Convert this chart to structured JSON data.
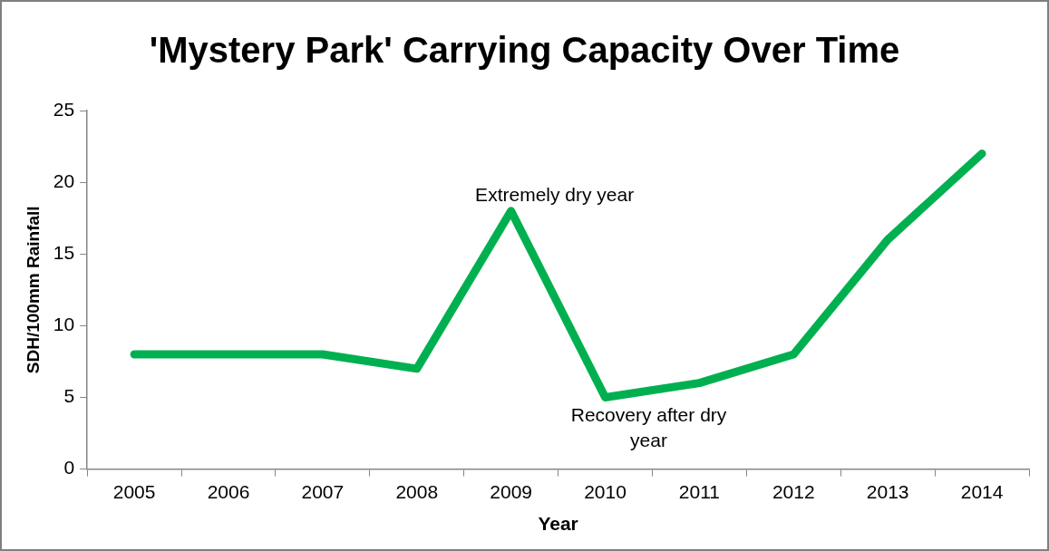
{
  "chart_data": {
    "type": "line",
    "title": "'Mystery Park' Carrying Capacity Over Time",
    "xlabel": "Year",
    "ylabel": "SDH/100mm Rainfall",
    "categories": [
      "2005",
      "2006",
      "2007",
      "2008",
      "2009",
      "2010",
      "2011",
      "2012",
      "2013",
      "2014"
    ],
    "series": [
      {
        "color": "#00b050",
        "values": [
          8,
          8,
          8,
          7,
          18,
          5,
          6,
          8,
          16,
          22
        ]
      }
    ],
    "ylim": [
      0,
      25
    ],
    "yticks": [
      0,
      5,
      10,
      15,
      20,
      25
    ],
    "grid": false,
    "legend": false,
    "marker": "none",
    "line_style": "solid",
    "annotations": [
      {
        "text": "Extremely dry year",
        "x": "2009",
        "y": 18
      },
      {
        "text": "Recovery after dry year",
        "x": "2010",
        "y": 5
      }
    ]
  }
}
